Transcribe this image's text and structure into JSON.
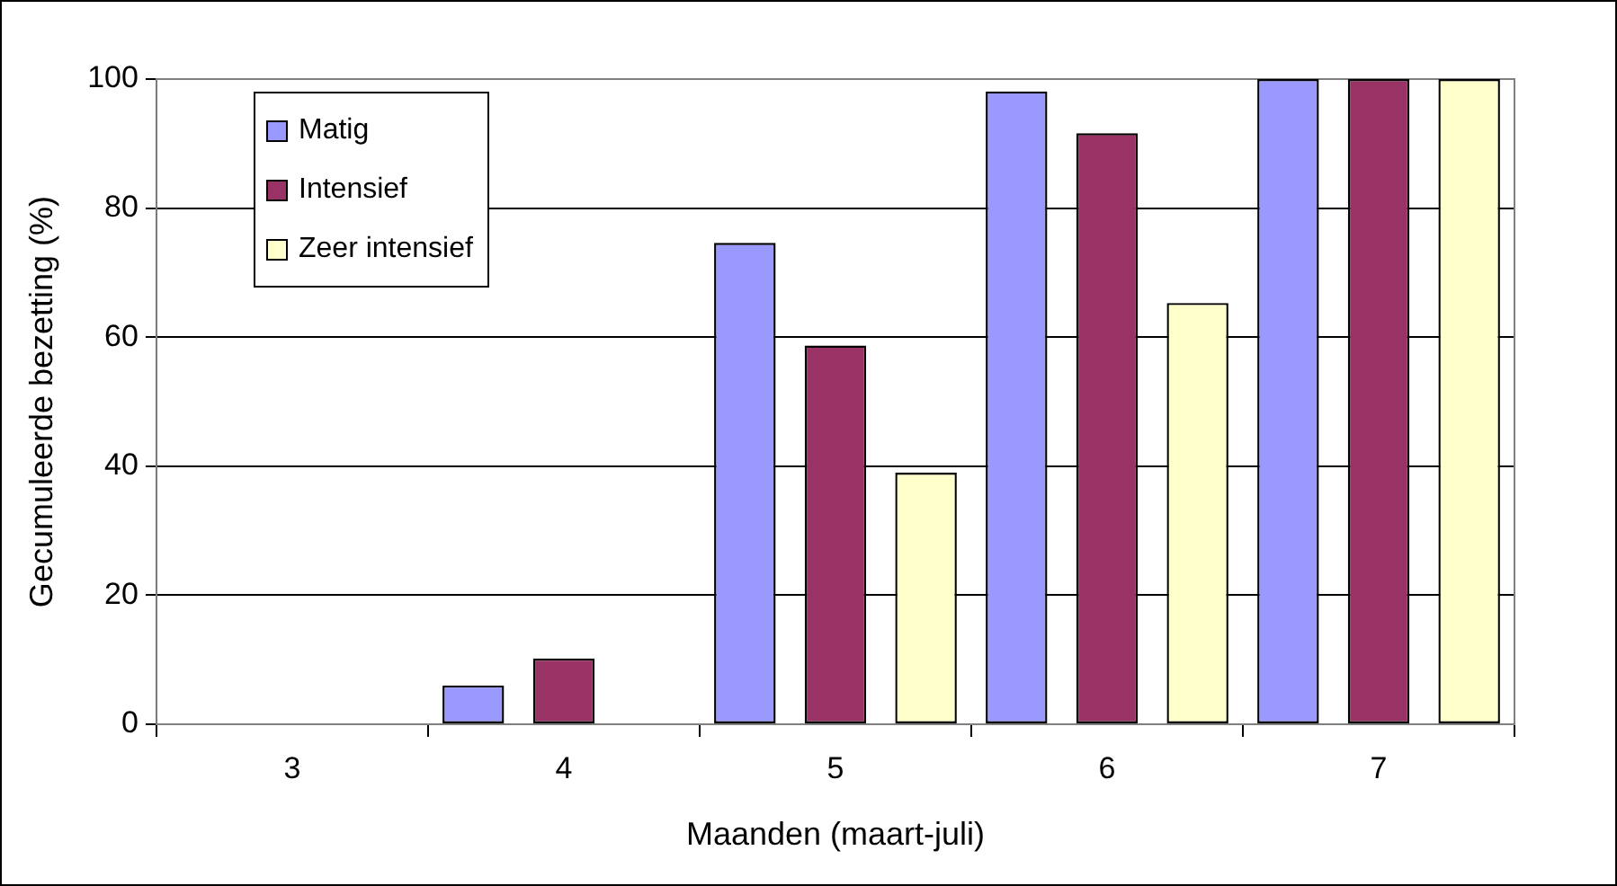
{
  "chart_data": {
    "type": "bar",
    "xlabel": "Maanden (maart-juli)",
    "ylabel": "Gecumuleerde bezetting (%)",
    "categories": [
      "3",
      "4",
      "5",
      "6",
      "7"
    ],
    "series": [
      {
        "name": "Matig",
        "color": "#9999ff",
        "values": [
          0,
          6,
          74.6,
          98.1,
          100
        ]
      },
      {
        "name": "Intensief",
        "color": "#993366",
        "values": [
          0,
          10.2,
          58.7,
          91.6,
          100
        ]
      },
      {
        "name": "Zeer intensief",
        "color": "#ffffcc",
        "values": [
          0,
          0,
          39,
          65.3,
          100
        ]
      }
    ],
    "ylim": [
      0,
      100
    ],
    "yticks": [
      0,
      20,
      40,
      60,
      80,
      100
    ],
    "grid": "y",
    "legend": "top left"
  }
}
